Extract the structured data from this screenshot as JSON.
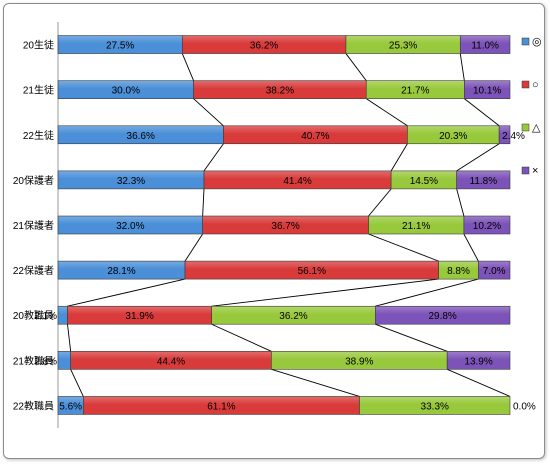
{
  "chart_data": {
    "type": "bar",
    "orientation": "horizontal",
    "stacked": "percent",
    "categories": [
      "20生徒",
      "21生徒",
      "22生徒",
      "20保護者",
      "21保護者",
      "22保護者",
      "20教職員",
      "21教職員",
      "22教職員"
    ],
    "series": [
      {
        "name": "◎",
        "color": "#4a8fd8",
        "values": [
          27.5,
          30.0,
          36.6,
          32.3,
          32.0,
          28.1,
          2.1,
          2.8,
          5.6
        ],
        "labels": [
          "27.5%",
          "30.0%",
          "36.6%",
          "32.3%",
          "32.0%",
          "28.1%",
          "2.1%",
          "2.8%",
          "5.6%"
        ]
      },
      {
        "name": "○",
        "color": "#d93b3b",
        "values": [
          36.2,
          38.2,
          40.7,
          41.4,
          36.7,
          56.1,
          31.9,
          44.4,
          61.1
        ],
        "labels": [
          "36.2%",
          "38.2%",
          "40.7%",
          "41.4%",
          "36.7%",
          "56.1%",
          "31.9%",
          "44.4%",
          "61.1%"
        ]
      },
      {
        "name": "△",
        "color": "#98c93c",
        "values": [
          25.3,
          21.7,
          20.3,
          14.5,
          21.1,
          8.8,
          36.2,
          38.9,
          33.3
        ],
        "labels": [
          "25.3%",
          "21.7%",
          "20.3%",
          "14.5%",
          "21.1%",
          "8.8%",
          "36.2%",
          "38.9%",
          "33.3%"
        ]
      },
      {
        "name": "×",
        "color": "#7c53b8",
        "values": [
          11.0,
          10.1,
          2.4,
          11.8,
          10.2,
          7.0,
          29.8,
          13.9,
          0.0
        ],
        "labels": [
          "11.0%",
          "10.1%",
          "2.4%",
          "11.8%",
          "10.2%",
          "7.0%",
          "29.8%",
          "13.9%",
          "0.0%"
        ]
      }
    ],
    "xlim": [
      0,
      100
    ],
    "series_lines": true,
    "legend_position": "right",
    "grid": false
  }
}
